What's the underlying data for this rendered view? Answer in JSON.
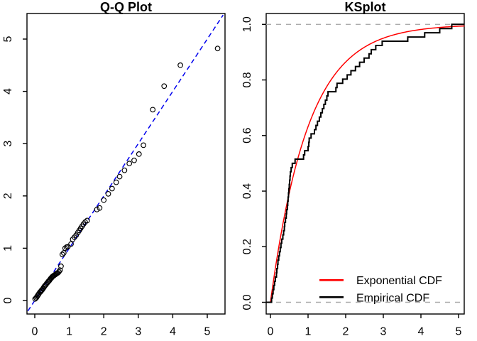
{
  "chart_data": [
    {
      "type": "scatter",
      "title": "Q-Q Plot",
      "x_tick_labels": [
        "0",
        "1",
        "2",
        "3",
        "4",
        "5"
      ],
      "x_tick_values": [
        0,
        1,
        2,
        3,
        4,
        5
      ],
      "y_tick_labels": [
        "0",
        "1",
        "2",
        "3",
        "4",
        "5"
      ],
      "y_tick_values": [
        0,
        1,
        2,
        3,
        4,
        5
      ],
      "xlim": [
        -0.23,
        5.51
      ],
      "ylim": [
        -0.26,
        5.49
      ],
      "point_style": "open-circle",
      "point_color": "#000000",
      "reference_line": {
        "equation": "y = x",
        "style": "dashed",
        "color": "#0000EE"
      },
      "n": 66,
      "theoretical_quantiles": [
        0.01,
        0.04,
        0.06,
        0.08,
        0.1,
        0.12,
        0.15,
        0.17,
        0.19,
        0.21,
        0.23,
        0.25,
        0.27,
        0.29,
        0.32,
        0.35,
        0.38,
        0.4,
        0.42,
        0.44,
        0.46,
        0.48,
        0.5,
        0.52,
        0.54,
        0.56,
        0.58,
        0.6,
        0.62,
        0.64,
        0.67,
        0.7,
        0.73,
        0.76,
        0.8,
        0.84,
        0.88,
        0.92,
        0.96,
        1.05,
        1.1,
        1.15,
        1.2,
        1.25,
        1.29,
        1.33,
        1.37,
        1.41,
        1.46,
        1.52,
        1.8,
        1.88,
        2.0,
        2.13,
        2.24,
        2.36,
        2.46,
        2.6,
        2.74,
        2.88,
        3.02,
        3.15,
        3.42,
        3.75,
        4.22,
        5.3
      ],
      "sample_quantiles_sorted": [
        0.03,
        0.05,
        0.07,
        0.09,
        0.11,
        0.13,
        0.16,
        0.17,
        0.19,
        0.2,
        0.22,
        0.24,
        0.26,
        0.28,
        0.3,
        0.33,
        0.35,
        0.37,
        0.38,
        0.4,
        0.42,
        0.43,
        0.45,
        0.46,
        0.47,
        0.48,
        0.49,
        0.5,
        0.51,
        0.52,
        0.53,
        0.55,
        0.58,
        0.655,
        0.88,
        0.91,
        1.0,
        1.02,
        1.03,
        1.08,
        1.17,
        1.21,
        1.25,
        1.3,
        1.34,
        1.38,
        1.42,
        1.46,
        1.5,
        1.53,
        1.74,
        1.77,
        1.92,
        2.04,
        2.14,
        2.26,
        2.37,
        2.49,
        2.62,
        2.68,
        2.8,
        2.97,
        3.65,
        4.1,
        4.5,
        4.82
      ]
    },
    {
      "type": "line",
      "title": "KSplot",
      "x_tick_labels": [
        "0",
        "1",
        "2",
        "3",
        "4",
        "5"
      ],
      "x_tick_values": [
        0,
        1,
        2,
        3,
        4,
        5
      ],
      "y_tick_labels": [
        "0.0",
        "0.2",
        "0.4",
        "0.6",
        "0.8",
        "1.0"
      ],
      "y_tick_values": [
        0,
        0.2,
        0.4,
        0.6,
        0.8,
        1.0
      ],
      "xlim": [
        -0.11,
        5.15
      ],
      "ylim": [
        -0.04,
        1.04
      ],
      "hlines": [
        {
          "y": 0,
          "style": "dashed",
          "color": "#ABABAB"
        },
        {
          "y": 1,
          "style": "dashed",
          "color": "#ABABAB"
        }
      ],
      "series": [
        {
          "name": "Exponential CDF",
          "color": "#FF0000",
          "kind": "curve",
          "formula": "F(x) = 1 - exp(-x)"
        },
        {
          "name": "Empirical CDF",
          "color": "#000000",
          "kind": "step",
          "note": "steps at the same 66 sample values as the Q-Q plot"
        }
      ],
      "legend": {
        "position": "bottom-right",
        "entries": [
          {
            "label": "Exponential CDF",
            "color": "#FF0000"
          },
          {
            "label": "Empirical CDF",
            "color": "#000000"
          }
        ]
      }
    }
  ]
}
